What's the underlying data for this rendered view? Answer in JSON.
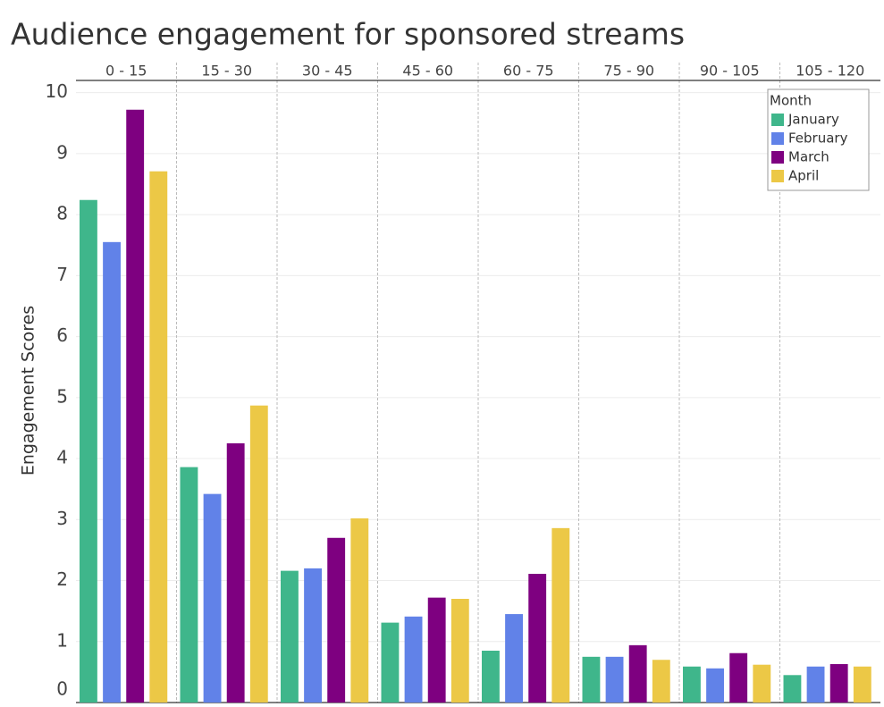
{
  "chart_data": {
    "type": "bar",
    "title": "Audience engagement for sponsored streams",
    "y_label": "Engagement Scores",
    "legend_title": "Month",
    "legend_position": "top-right",
    "grid": true,
    "categories": [
      "0 - 15",
      "15 - 30",
      "30 - 45",
      "45 - 60",
      "60 - 75",
      "75 - 90",
      "90 - 105",
      "105 - 120"
    ],
    "series": [
      {
        "name": "January",
        "color": "#3fb68b",
        "values": [
          8.24,
          3.86,
          2.16,
          1.31,
          0.85,
          0.75,
          0.59,
          0.45
        ]
      },
      {
        "name": "February",
        "color": "#6182e8",
        "values": [
          7.55,
          3.42,
          2.2,
          1.41,
          1.45,
          0.75,
          0.56,
          0.59
        ]
      },
      {
        "name": "March",
        "color": "#7e0080",
        "values": [
          9.72,
          4.25,
          2.7,
          1.72,
          2.11,
          0.94,
          0.81,
          0.63
        ]
      },
      {
        "name": "April",
        "color": "#ecc846",
        "values": [
          8.71,
          4.87,
          3.02,
          1.7,
          2.86,
          0.7,
          0.62,
          0.59
        ]
      }
    ],
    "ylim": [
      0,
      10.2
    ],
    "yticks": [
      0,
      1,
      2,
      3,
      4,
      5,
      6,
      7,
      8,
      9,
      10
    ]
  }
}
